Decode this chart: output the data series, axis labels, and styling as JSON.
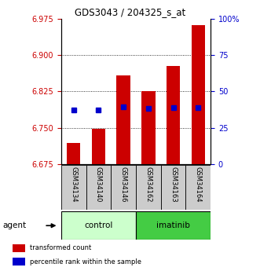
{
  "title": "GDS3043 / 204325_s_at",
  "samples": [
    "GSM34134",
    "GSM34140",
    "GSM34146",
    "GSM34162",
    "GSM34163",
    "GSM34164"
  ],
  "groups": [
    "control",
    "control",
    "control",
    "imatinib",
    "imatinib",
    "imatinib"
  ],
  "bar_bottoms": [
    6.675,
    6.675,
    6.675,
    6.675,
    6.675,
    6.675
  ],
  "bar_tops": [
    6.718,
    6.748,
    6.858,
    6.825,
    6.878,
    6.963
  ],
  "percentile_values": [
    6.787,
    6.787,
    6.793,
    6.79,
    6.791,
    6.791
  ],
  "ylim_min": 6.675,
  "ylim_max": 6.975,
  "yticks_left": [
    6.675,
    6.75,
    6.825,
    6.9,
    6.975
  ],
  "yticks_right_vals": [
    0,
    25,
    50,
    75,
    100
  ],
  "yticks_right_labels": [
    "0",
    "25",
    "50",
    "75",
    "100%"
  ],
  "bar_color": "#cc0000",
  "percentile_color": "#0000cc",
  "control_color": "#ccffcc",
  "imatinib_color": "#44cc44",
  "left_tick_color": "#cc0000",
  "right_tick_color": "#0000cc",
  "bar_width": 0.55,
  "legend_items": [
    {
      "label": "transformed count",
      "color": "#cc0000"
    },
    {
      "label": "percentile rank within the sample",
      "color": "#0000cc"
    }
  ],
  "agent_label": "agent",
  "gridline_color": "black",
  "gridline_style": ":"
}
